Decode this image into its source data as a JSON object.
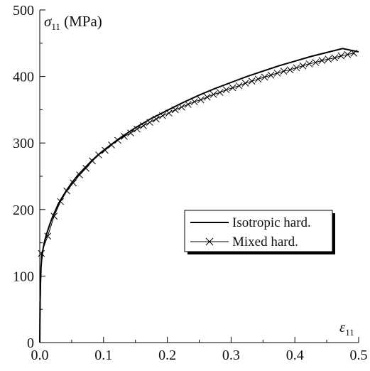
{
  "chart_data": {
    "type": "line",
    "x_axis": {
      "symbol": "ε",
      "subscript": "11",
      "unit": "",
      "ticks": [
        "0.0",
        "0.1",
        "0.2",
        "0.3",
        "0.4",
        "0.5"
      ],
      "range": [
        0,
        0.5
      ]
    },
    "y_axis": {
      "symbol": "σ",
      "subscript": "11",
      "unit": " (MPa)",
      "ticks": [
        "0",
        "100",
        "200",
        "300",
        "400",
        "500"
      ],
      "range": [
        0,
        500
      ]
    },
    "legend": {
      "position": "center-right",
      "entries": [
        {
          "label": "Isotropic hard.",
          "marker": "none"
        },
        {
          "label": "Mixed hard.",
          "marker": "x"
        }
      ]
    },
    "series": [
      {
        "name": "Isotropic hard.",
        "style": "solid",
        "x": [
          0,
          0.0005,
          0.001,
          0.002,
          0.003,
          0.005,
          0.0075,
          0.01,
          0.015,
          0.02,
          0.03,
          0.04,
          0.05,
          0.06,
          0.07,
          0.08,
          0.09,
          0.1,
          0.125,
          0.15,
          0.175,
          0.2,
          0.225,
          0.25,
          0.275,
          0.3,
          0.325,
          0.35,
          0.375,
          0.4,
          0.425,
          0.45,
          0.475,
          0.5
        ],
        "y": [
          0,
          60,
          85,
          113,
          125,
          140,
          152,
          161,
          176,
          189,
          210,
          226,
          240,
          252,
          262,
          272,
          281,
          289,
          307,
          323,
          337,
          349,
          361,
          372,
          382,
          391,
          400,
          408,
          416,
          423,
          430,
          436,
          442,
          437
        ]
      },
      {
        "name": "Mixed hard.",
        "style": "solid-with-x-markers",
        "x": [
          0,
          0.0025,
          0.0125,
          0.0225,
          0.0325,
          0.0425,
          0.0525,
          0.0625,
          0.0725,
          0.0825,
          0.0925,
          0.1025,
          0.1125,
          0.1225,
          0.1325,
          0.1425,
          0.1525,
          0.1625,
          0.1725,
          0.1825,
          0.1925,
          0.2025,
          0.2125,
          0.2225,
          0.2325,
          0.2425,
          0.2525,
          0.2625,
          0.2725,
          0.2825,
          0.2925,
          0.3025,
          0.3125,
          0.3225,
          0.3325,
          0.3425,
          0.3525,
          0.3625,
          0.3725,
          0.3825,
          0.3925,
          0.4025,
          0.4125,
          0.4225,
          0.4325,
          0.4425,
          0.4525,
          0.4625,
          0.4725,
          0.4825,
          0.4925
        ],
        "y": [
          0,
          134,
          160,
          190,
          212,
          228,
          240,
          252,
          262,
          273,
          282,
          289,
          297,
          304,
          310,
          315,
          321,
          326,
          331,
          336,
          341,
          345,
          350,
          354,
          358,
          362,
          365,
          369,
          373,
          376,
          380,
          383,
          386,
          390,
          393,
          396,
          399,
          402,
          405,
          408,
          410,
          413,
          416,
          419,
          421,
          424,
          426,
          428,
          431,
          433,
          435
        ]
      }
    ]
  }
}
